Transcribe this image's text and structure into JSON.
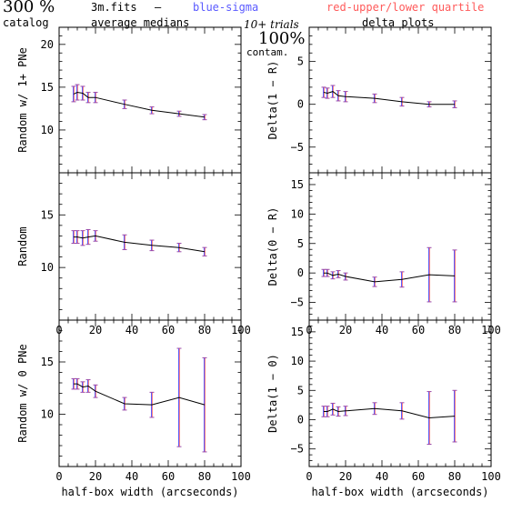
{
  "header": {
    "count": "300 %",
    "catalog": "catalog",
    "file": "3m.fits",
    "dash": "–",
    "medians": "average medians",
    "sigma": "blue-sigma",
    "quartile": "red-upper/lower quartile",
    "trials": "10+ trials",
    "pct": "100%",
    "contam": "contam.",
    "delta": "delta plots"
  },
  "colors": {
    "sigma": "#5a5aff",
    "quartile": "#ff5a5a",
    "overlap": "#9a4aa8",
    "line": "#000000"
  },
  "chart_data": [
    {
      "type": "line",
      "panel": "left-top",
      "ylabel": "Random w/ 1+ PNe",
      "xlabel": "",
      "xlim": [
        0,
        100
      ],
      "ylim": [
        5,
        22
      ],
      "xticks": [
        "0",
        "20",
        "40",
        "60",
        "80",
        "100"
      ],
      "show_xticks": false,
      "yticks": [
        "10",
        "15",
        "20"
      ],
      "x": [
        8,
        10,
        13,
        16,
        20,
        36,
        51,
        66,
        80
      ],
      "y": [
        14.2,
        14.4,
        14.3,
        13.8,
        13.8,
        13.0,
        12.3,
        11.9,
        11.5
      ],
      "err": [
        0.9,
        0.9,
        0.8,
        0.6,
        0.6,
        0.5,
        0.4,
        0.3,
        0.3
      ]
    },
    {
      "type": "line",
      "panel": "right-top",
      "ylabel": "Delta(1 − R)",
      "xlabel": "",
      "xlim": [
        0,
        100
      ],
      "ylim": [
        -8,
        9
      ],
      "xticks": [
        "0",
        "20",
        "40",
        "60",
        "80",
        "100"
      ],
      "show_xticks": false,
      "yticks": [
        "−5",
        "0",
        "5"
      ],
      "x": [
        8,
        10,
        13,
        16,
        20,
        36,
        51,
        66,
        80
      ],
      "y": [
        1.4,
        1.3,
        1.5,
        1.0,
        0.9,
        0.7,
        0.3,
        0.0,
        0.0
      ],
      "err": [
        0.6,
        0.6,
        0.7,
        0.6,
        0.6,
        0.5,
        0.5,
        0.3,
        0.4
      ]
    },
    {
      "type": "line",
      "panel": "left-middle",
      "ylabel": "Random",
      "xlabel": "",
      "xlim": [
        0,
        100
      ],
      "ylim": [
        5,
        19
      ],
      "xticks": [
        "0",
        "20",
        "40",
        "60",
        "80",
        "100"
      ],
      "show_xticks": true,
      "yticks": [
        "10",
        "15"
      ],
      "x": [
        8,
        10,
        13,
        16,
        20,
        36,
        51,
        66,
        80
      ],
      "y": [
        12.9,
        12.9,
        12.8,
        12.9,
        13.0,
        12.4,
        12.1,
        11.9,
        11.5
      ],
      "err": [
        0.6,
        0.6,
        0.7,
        0.7,
        0.5,
        0.7,
        0.5,
        0.4,
        0.4
      ]
    },
    {
      "type": "line",
      "panel": "right-middle",
      "ylabel": "Delta(0 − R)",
      "xlabel": "",
      "xlim": [
        0,
        100
      ],
      "ylim": [
        -8,
        17
      ],
      "xticks": [
        "0",
        "20",
        "40",
        "60",
        "80",
        "100"
      ],
      "show_xticks": true,
      "yticks": [
        "−5",
        "0",
        "5",
        "10",
        "15"
      ],
      "x": [
        8,
        10,
        13,
        16,
        20,
        36,
        51,
        66,
        80
      ],
      "y": [
        0.0,
        0.0,
        -0.4,
        -0.2,
        -0.6,
        -1.5,
        -1.1,
        -0.3,
        -0.5
      ],
      "err": [
        0.6,
        0.6,
        0.6,
        0.6,
        0.6,
        0.8,
        1.3,
        4.6,
        4.4
      ]
    },
    {
      "type": "line",
      "panel": "left-bottom",
      "ylabel": "Random w/ 0 PNe",
      "xlabel": "half-box width (arcseconds)",
      "xlim": [
        0,
        100
      ],
      "ylim": [
        5,
        19
      ],
      "xticks": [
        "0",
        "20",
        "40",
        "60",
        "80",
        "100"
      ],
      "show_xticks": true,
      "yticks": [
        "10",
        "15"
      ],
      "x": [
        8,
        10,
        13,
        16,
        20,
        36,
        51,
        66,
        80
      ],
      "y": [
        12.9,
        12.9,
        12.6,
        12.7,
        12.2,
        11.0,
        10.9,
        11.6,
        10.9
      ],
      "err": [
        0.5,
        0.5,
        0.5,
        0.6,
        0.6,
        0.6,
        1.2,
        4.7,
        4.5
      ]
    },
    {
      "type": "line",
      "panel": "right-bottom",
      "ylabel": "Delta(1 − 0)",
      "xlabel": "half-box width (arcseconds)",
      "xlim": [
        0,
        100
      ],
      "ylim": [
        -8,
        17
      ],
      "xticks": [
        "0",
        "20",
        "40",
        "60",
        "80",
        "100"
      ],
      "show_xticks": true,
      "yticks": [
        "−5",
        "0",
        "5",
        "10",
        "15"
      ],
      "x": [
        8,
        10,
        13,
        16,
        20,
        36,
        51,
        66,
        80
      ],
      "y": [
        1.4,
        1.4,
        1.8,
        1.4,
        1.5,
        1.9,
        1.5,
        0.3,
        0.6
      ],
      "err": [
        0.9,
        0.9,
        1.0,
        0.8,
        0.8,
        1.0,
        1.4,
        4.5,
        4.4
      ]
    }
  ]
}
